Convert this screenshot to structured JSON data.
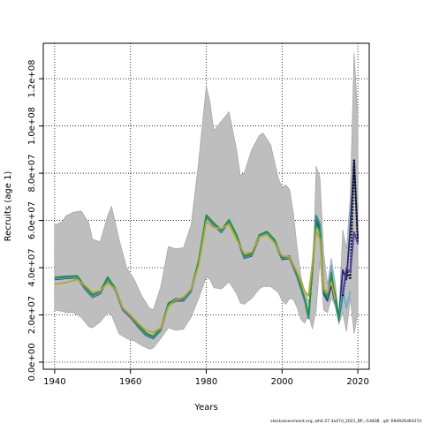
{
  "chart_data": {
    "type": "line",
    "title": "",
    "xlabel": "Years",
    "ylabel": "Recruits (age 1)",
    "xlim": [
      1937,
      2023
    ],
    "ylim": [
      -3000000,
      135000000
    ],
    "x_ticks": [
      1940,
      1960,
      1980,
      2000,
      2020
    ],
    "x_tick_labels": [
      "1940",
      "1960",
      "1980",
      "2000",
      "2020"
    ],
    "y_ticks": [
      0,
      20000000,
      40000000,
      60000000,
      80000000,
      100000000,
      120000000
    ],
    "y_tick_labels": [
      "0.0e+00",
      "2.0e+07",
      "4.0e+07",
      "6.0e+07",
      "8.0e+07",
      "1.0e+08",
      "1.2e+08"
    ],
    "grid": true,
    "grid_style": "dotted",
    "footer": "stockassessment.org,  whit.27.3a47d_2021_BP,  r14838 ,  git: 69d926d0437d",
    "band": {
      "color": "#bebebe",
      "x": [
        1940,
        1942,
        1943,
        1945,
        1947,
        1949,
        1950,
        1952,
        1954,
        1955,
        1957,
        1959,
        1961,
        1963,
        1965,
        1966,
        1968,
        1970,
        1972,
        1974,
        1976,
        1978,
        1980,
        1981,
        1982,
        1984,
        1986,
        1988,
        1989,
        1990,
        1992,
        1994,
        1995,
        1997,
        1999,
        2000,
        2001,
        2002,
        2003,
        2004,
        2005,
        2006,
        2007,
        2008,
        2009,
        2010,
        2011,
        2012,
        2013,
        2014,
        2015,
        2016,
        2017,
        2018,
        2019,
        2020
      ],
      "upper": [
        58000000,
        59500000,
        62000000,
        63500000,
        64000000,
        59000000,
        52000000,
        51000000,
        62000000,
        66000000,
        52000000,
        40000000,
        35000000,
        28000000,
        23000000,
        22000000,
        32000000,
        49000000,
        48000000,
        48500000,
        58000000,
        85000000,
        117000000,
        110000000,
        98000000,
        102000000,
        106000000,
        90000000,
        79000000,
        80000000,
        90000000,
        96000000,
        97000000,
        92000000,
        78000000,
        74000000,
        75000000,
        73000000,
        63000000,
        48000000,
        36000000,
        30000000,
        26000000,
        30000000,
        83000000,
        78000000,
        46000000,
        33000000,
        44000000,
        34000000,
        20000000,
        56000000,
        48000000,
        70000000,
        131000000,
        104000000
      ],
      "lower": [
        22000000,
        21500000,
        21000000,
        21000000,
        19000000,
        15000000,
        14500000,
        17000000,
        21000000,
        20000000,
        12000000,
        10000000,
        9000000,
        7000000,
        5500000,
        6000000,
        10000000,
        14500000,
        13500000,
        14000000,
        19000000,
        27000000,
        36000000,
        35000000,
        31500000,
        31000000,
        34000000,
        29000000,
        25000000,
        24500000,
        27000000,
        31000000,
        32000000,
        32000000,
        29500000,
        26000000,
        24500000,
        27000000,
        26500000,
        23000000,
        18000000,
        16500000,
        20000000,
        14000000,
        22000000,
        43000000,
        22000000,
        21000000,
        27000000,
        24000000,
        16000000,
        21000000,
        13000000,
        27000000,
        12000000,
        21000000
      ]
    },
    "series": [
      {
        "color": "#1c2c8c",
        "x": [
          1940,
          1943,
          1946,
          1948,
          1950,
          1952,
          1954,
          1956,
          1958,
          1960,
          1962,
          1964,
          1966,
          1968,
          1970,
          1972,
          1974,
          1976,
          1978,
          1980,
          1982,
          1984,
          1986,
          1988,
          1990,
          1992,
          1994,
          1996,
          1998,
          2000,
          2002,
          2004,
          2006,
          2007,
          2009,
          2010,
          2011,
          2012,
          2013,
          2014,
          2015,
          2016,
          2017,
          2018,
          2019,
          2020
        ],
        "y": [
          35000000,
          35500000,
          35700000,
          31000000,
          27500000,
          29000000,
          35000000,
          30500000,
          22000000,
          19000000,
          15000000,
          11500000,
          10000000,
          13500000,
          24000000,
          26000000,
          26000000,
          30000000,
          42000000,
          61500000,
          58000000,
          55000000,
          59500000,
          53000000,
          44000000,
          45000000,
          53000000,
          54500000,
          51000000,
          43500000,
          44000000,
          36000000,
          26000000,
          18500000,
          60000000,
          56000000,
          29000000,
          26000000,
          33000000,
          25000000,
          18000000,
          39000000,
          35000000,
          57000000,
          85000000,
          52000000
        ]
      },
      {
        "color": "#74a9cf",
        "x": [
          1940,
          1943,
          1946,
          1948,
          1950,
          1952,
          1954,
          1956,
          1958,
          1960,
          1962,
          1964,
          1966,
          1968,
          1970,
          1972,
          1974,
          1976,
          1978,
          1980,
          1982,
          1984,
          1986,
          1988,
          1990,
          1992,
          1994,
          1996,
          1998,
          2000,
          2002,
          2004,
          2006,
          2007,
          2009,
          2010,
          2011,
          2012,
          2013,
          2014,
          2015,
          2016,
          2017,
          2018
        ],
        "y": [
          35300000,
          35700000,
          35900000,
          31300000,
          27800000,
          29300000,
          35300000,
          30700000,
          22300000,
          19300000,
          15300000,
          11800000,
          10300000,
          13800000,
          24300000,
          26300000,
          26300000,
          30300000,
          42300000,
          61800000,
          58300000,
          55300000,
          59800000,
          53300000,
          44300000,
          45300000,
          53300000,
          54800000,
          51300000,
          43800000,
          44300000,
          36300000,
          26300000,
          18800000,
          62000000,
          59000000,
          31000000,
          28000000,
          41000000,
          25000000,
          18000000,
          31000000,
          23000000,
          30000000
        ]
      },
      {
        "color": "#2c8e7e",
        "x": [
          1940,
          1943,
          1946,
          1948,
          1950,
          1952,
          1954,
          1956,
          1958,
          1960,
          1962,
          1964,
          1966,
          1968,
          1970,
          1972,
          1974,
          1976,
          1978,
          1980,
          1982,
          1984,
          1986,
          1988,
          1990,
          1992,
          1994,
          1996,
          1998,
          2000,
          2002,
          2004,
          2006,
          2007,
          2009,
          2010,
          2011,
          2012,
          2013,
          2014,
          2015,
          2016
        ],
        "y": [
          35600000,
          36000000,
          36200000,
          31700000,
          28200000,
          29700000,
          35700000,
          31000000,
          22600000,
          19600000,
          15600000,
          12100000,
          10600000,
          14100000,
          24600000,
          26600000,
          26600000,
          30600000,
          42600000,
          62000000,
          58600000,
          55600000,
          60000000,
          53600000,
          44600000,
          45600000,
          53600000,
          55000000,
          51600000,
          44000000,
          44600000,
          36600000,
          26600000,
          19100000,
          62000000,
          58000000,
          30000000,
          27000000,
          38000000,
          26000000,
          17500000,
          28000000
        ]
      },
      {
        "color": "#1a9641",
        "x": [
          1940,
          1943,
          1946,
          1948,
          1950,
          1952,
          1954,
          1956,
          1958,
          1960,
          1962,
          1964,
          1966,
          1968,
          1970,
          1972,
          1974,
          1976,
          1978,
          1980,
          1982,
          1984,
          1986,
          1988,
          1990,
          1992,
          1994,
          1996,
          1998,
          2000,
          2002,
          2004,
          2006,
          2007,
          2009,
          2010,
          2011,
          2012,
          2013,
          2014,
          2015
        ],
        "y": [
          35900000,
          36300000,
          36500000,
          32000000,
          28500000,
          30000000,
          36000000,
          31300000,
          22900000,
          19900000,
          15900000,
          12400000,
          10900000,
          14400000,
          24900000,
          26900000,
          26900000,
          30900000,
          42900000,
          62300000,
          58900000,
          55900000,
          60300000,
          53900000,
          44900000,
          45900000,
          53900000,
          55300000,
          51900000,
          44300000,
          44900000,
          36900000,
          26900000,
          19400000,
          59000000,
          55000000,
          29500000,
          27500000,
          36500000,
          28500000,
          19000000
        ]
      },
      {
        "color": "#b8a632",
        "x": [
          1940,
          1943,
          1946,
          1948,
          1950,
          1952,
          1954,
          1956,
          1958,
          1960,
          1962,
          1964,
          1966,
          1968,
          1970,
          1972,
          1974,
          1976,
          1978,
          1980,
          1982,
          1984,
          1986,
          1988,
          1990,
          1992,
          1994,
          1996,
          1998,
          2000,
          2002,
          2004,
          2006,
          2007,
          2009,
          2010,
          2011,
          2012,
          2013,
          2014
        ],
        "y": [
          33000000,
          33700000,
          35000000,
          32500000,
          29500000,
          30200000,
          33500000,
          31000000,
          23000000,
          20000000,
          16500000,
          13500000,
          12500000,
          14500000,
          23500000,
          26500000,
          27500000,
          31000000,
          41000000,
          59500000,
          57000000,
          56500000,
          58500000,
          52000000,
          46000000,
          46500000,
          53000000,
          54000000,
          50500000,
          45000000,
          44500000,
          38000000,
          30000000,
          28000000,
          56000000,
          52000000,
          31000000,
          29500000,
          34000000,
          26500000
        ]
      },
      {
        "color": "#111111",
        "dashed": true,
        "x": [
          2016,
          2017,
          2018,
          2019,
          2020
        ],
        "y": [
          28000000,
          39000000,
          35000000,
          86000000,
          50000000
        ]
      },
      {
        "color": "#5a3e9a",
        "x": [
          2016,
          2017,
          2018,
          2019,
          2020
        ],
        "y": [
          29000000,
          40000000,
          38000000,
          55000000,
          50000000
        ]
      }
    ]
  }
}
